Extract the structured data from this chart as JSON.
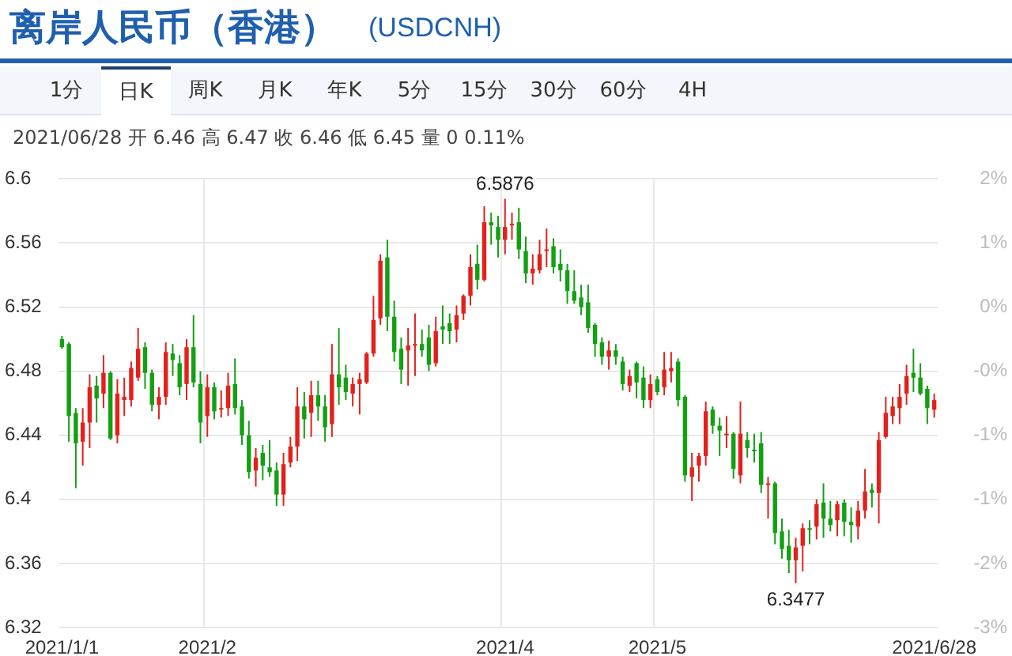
{
  "chart_data": {
    "type": "candlestick",
    "title": "离岸人民币（香港）",
    "subtitle": "(USDCNH)",
    "annotations": [
      "1分",
      "日K",
      "周K",
      "月K",
      "年K",
      "5分",
      "15分",
      "30分",
      "60分",
      "4H",
      "2021/06/28 开 6.46 高 6.47 收 6.46 低 6.45 量 0 0.11%",
      {
        "text": "6.5876",
        "y": 6.5876
      },
      {
        "text": "6.3477",
        "y": 6.3477
      }
    ],
    "categories": [
      "2021/1/1",
      null,
      null,
      null,
      null,
      null,
      null,
      null,
      null,
      null,
      null,
      null,
      null,
      null,
      null,
      null,
      null,
      null,
      null,
      null,
      null,
      "2021/2",
      null,
      null,
      null,
      null,
      null,
      null,
      null,
      null,
      null,
      null,
      null,
      null,
      null,
      null,
      null,
      null,
      null,
      null,
      null,
      null,
      null,
      null,
      null,
      null,
      null,
      null,
      null,
      null,
      null,
      null,
      null,
      null,
      null,
      null,
      null,
      null,
      null,
      null,
      null,
      null,
      null,
      null,
      "2021/4",
      null,
      null,
      null,
      null,
      null,
      null,
      null,
      null,
      null,
      null,
      null,
      null,
      null,
      null,
      null,
      null,
      null,
      null,
      null,
      null,
      null,
      "2021/5",
      null,
      null,
      null,
      null,
      null,
      null,
      null,
      null,
      null,
      null,
      null,
      null,
      null,
      null,
      null,
      null,
      null,
      null,
      null,
      null,
      null,
      null,
      null,
      null,
      null,
      null,
      null,
      null,
      null,
      null,
      null,
      null,
      null,
      null,
      null,
      null,
      null,
      null,
      null,
      "2021/6/28"
    ],
    "ohlc": [
      [
        6.5,
        6.502,
        6.494,
        6.495
      ],
      [
        6.497,
        6.498,
        6.436,
        6.452
      ],
      [
        6.454,
        6.457,
        6.407,
        6.435
      ],
      [
        6.436,
        6.457,
        6.421,
        6.448
      ],
      [
        6.448,
        6.478,
        6.432,
        6.47
      ],
      [
        6.471,
        6.477,
        6.448,
        6.463
      ],
      [
        6.466,
        6.49,
        6.457,
        6.479
      ],
      [
        6.479,
        6.48,
        6.437,
        6.438
      ],
      [
        6.44,
        6.475,
        6.435,
        6.466
      ],
      [
        6.462,
        6.476,
        6.452,
        6.464
      ],
      [
        6.462,
        6.486,
        6.458,
        6.482
      ],
      [
        6.476,
        6.507,
        6.474,
        6.494
      ],
      [
        6.495,
        6.498,
        6.469,
        6.479
      ],
      [
        6.479,
        6.481,
        6.455,
        6.459
      ],
      [
        6.459,
        6.47,
        6.45,
        6.464
      ],
      [
        6.464,
        6.498,
        6.459,
        6.492
      ],
      [
        6.491,
        6.497,
        6.477,
        6.487
      ],
      [
        6.485,
        6.49,
        6.465,
        6.47
      ],
      [
        6.472,
        6.5,
        6.462,
        6.495
      ],
      [
        6.495,
        6.515,
        6.47,
        6.473
      ],
      [
        6.472,
        6.48,
        6.435,
        6.448
      ],
      [
        6.452,
        6.478,
        6.439,
        6.47
      ],
      [
        6.47,
        6.473,
        6.45,
        6.455
      ],
      [
        6.456,
        6.468,
        6.451,
        6.456
      ],
      [
        6.457,
        6.479,
        6.452,
        6.471
      ],
      [
        6.472,
        6.488,
        6.453,
        6.457
      ],
      [
        6.458,
        6.462,
        6.434,
        6.44
      ],
      [
        6.44,
        6.449,
        6.413,
        6.417
      ],
      [
        6.418,
        6.432,
        6.408,
        6.426
      ],
      [
        6.429,
        6.434,
        6.412,
        6.421
      ],
      [
        6.42,
        6.437,
        6.414,
        6.417
      ],
      [
        6.418,
        6.423,
        6.396,
        6.403
      ],
      [
        6.403,
        6.429,
        6.396,
        6.422
      ],
      [
        6.423,
        6.439,
        6.42,
        6.433
      ],
      [
        6.433,
        6.47,
        6.424,
        6.458
      ],
      [
        6.458,
        6.467,
        6.438,
        6.45
      ],
      [
        6.454,
        6.474,
        6.439,
        6.465
      ],
      [
        6.465,
        6.474,
        6.449,
        6.458
      ],
      [
        6.458,
        6.465,
        6.436,
        6.445
      ],
      [
        6.447,
        6.497,
        6.439,
        6.478
      ],
      [
        6.478,
        6.507,
        6.459,
        6.47
      ],
      [
        6.476,
        6.484,
        6.462,
        6.467
      ],
      [
        6.466,
        6.476,
        6.458,
        6.472
      ],
      [
        6.472,
        6.479,
        6.453,
        6.475
      ],
      [
        6.473,
        6.492,
        6.472,
        6.491
      ],
      [
        6.491,
        6.527,
        6.489,
        6.512
      ],
      [
        6.513,
        6.553,
        6.509,
        6.549
      ],
      [
        6.551,
        6.562,
        6.505,
        6.514
      ],
      [
        6.514,
        6.524,
        6.486,
        6.492
      ],
      [
        6.494,
        6.501,
        6.472,
        6.481
      ],
      [
        6.493,
        6.507,
        6.471,
        6.496
      ],
      [
        6.496,
        6.516,
        6.477,
        6.497
      ],
      [
        6.497,
        6.506,
        6.489,
        6.493
      ],
      [
        6.501,
        6.509,
        6.48,
        6.484
      ],
      [
        6.485,
        6.514,
        6.483,
        6.505
      ],
      [
        6.508,
        6.521,
        6.497,
        6.506
      ],
      [
        6.51,
        6.516,
        6.497,
        6.505
      ],
      [
        6.506,
        6.521,
        6.498,
        6.515
      ],
      [
        6.516,
        6.528,
        6.512,
        6.527
      ],
      [
        6.527,
        6.553,
        6.521,
        6.545
      ],
      [
        6.547,
        6.559,
        6.531,
        6.537
      ],
      [
        6.537,
        6.583,
        6.536,
        6.573
      ],
      [
        6.573,
        6.579,
        6.559,
        6.571
      ],
      [
        6.57,
        6.577,
        6.551,
        6.562
      ],
      [
        6.562,
        6.5876,
        6.553,
        6.57
      ],
      [
        6.571,
        6.579,
        6.562,
        6.572
      ],
      [
        6.573,
        6.582,
        6.55,
        6.556
      ],
      [
        6.555,
        6.564,
        6.535,
        6.541
      ],
      [
        6.541,
        6.553,
        6.534,
        6.544
      ],
      [
        6.543,
        6.562,
        6.541,
        6.553
      ],
      [
        6.555,
        6.569,
        6.545,
        6.556
      ],
      [
        6.558,
        6.563,
        6.541,
        6.545
      ],
      [
        6.547,
        6.556,
        6.536,
        6.543
      ],
      [
        6.543,
        6.547,
        6.522,
        6.53
      ],
      [
        6.53,
        6.543,
        6.522,
        6.524
      ],
      [
        6.526,
        6.534,
        6.515,
        6.52
      ],
      [
        6.523,
        6.534,
        6.504,
        6.507
      ],
      [
        6.509,
        6.51,
        6.489,
        6.497
      ],
      [
        6.498,
        6.501,
        6.484,
        6.489
      ],
      [
        6.489,
        6.499,
        6.481,
        6.493
      ],
      [
        6.493,
        6.497,
        6.484,
        6.489
      ],
      [
        6.486,
        6.489,
        6.468,
        6.472
      ],
      [
        6.471,
        6.481,
        6.467,
        6.477
      ],
      [
        6.485,
        6.486,
        6.463,
        6.473
      ],
      [
        6.476,
        6.483,
        6.457,
        6.462
      ],
      [
        6.462,
        6.478,
        6.457,
        6.472
      ],
      [
        6.475,
        6.477,
        6.465,
        6.467
      ],
      [
        6.47,
        6.492,
        6.465,
        6.481
      ],
      [
        6.48,
        6.492,
        6.473,
        6.482
      ],
      [
        6.486,
        6.488,
        6.458,
        6.462
      ],
      [
        6.464,
        6.465,
        6.411,
        6.415
      ],
      [
        6.414,
        6.429,
        6.399,
        6.42
      ],
      [
        6.421,
        6.429,
        6.411,
        6.427
      ],
      [
        6.427,
        6.461,
        6.421,
        6.455
      ],
      [
        6.456,
        6.458,
        6.441,
        6.446
      ],
      [
        6.446,
        6.451,
        6.427,
        6.443
      ],
      [
        6.44,
        6.452,
        6.432,
        6.441
      ],
      [
        6.441,
        6.442,
        6.413,
        6.419
      ],
      [
        6.415,
        6.461,
        6.41,
        6.441
      ],
      [
        6.437,
        6.442,
        6.426,
        6.432
      ],
      [
        6.431,
        6.441,
        6.423,
        6.43
      ],
      [
        6.435,
        6.442,
        6.404,
        6.409
      ],
      [
        6.409,
        6.414,
        6.388,
        6.41
      ],
      [
        6.41,
        6.411,
        6.372,
        6.379
      ],
      [
        6.38,
        6.388,
        6.363,
        6.369
      ],
      [
        6.371,
        6.381,
        6.354,
        6.362
      ],
      [
        6.362,
        6.376,
        6.3477,
        6.37
      ],
      [
        6.371,
        6.385,
        6.355,
        6.382
      ],
      [
        6.382,
        6.387,
        6.372,
        6.381
      ],
      [
        6.383,
        6.4,
        6.375,
        6.397
      ],
      [
        6.398,
        6.41,
        6.376,
        6.388
      ],
      [
        6.388,
        6.399,
        6.38,
        6.384
      ],
      [
        6.387,
        6.399,
        6.377,
        6.397
      ],
      [
        6.398,
        6.4,
        6.377,
        6.386
      ],
      [
        6.386,
        6.395,
        6.373,
        6.384
      ],
      [
        6.383,
        6.399,
        6.375,
        6.393
      ],
      [
        6.393,
        6.419,
        6.388,
        6.405
      ],
      [
        6.406,
        6.41,
        6.395,
        6.404
      ],
      [
        6.404,
        6.442,
        6.385,
        6.437
      ],
      [
        6.439,
        6.464,
        6.438,
        6.454
      ],
      [
        6.452,
        6.464,
        6.447,
        6.458
      ],
      [
        6.457,
        6.472,
        6.447,
        6.464
      ],
      [
        6.466,
        6.484,
        6.459,
        6.477
      ],
      [
        6.479,
        6.494,
        6.467,
        6.476
      ],
      [
        6.476,
        6.485,
        6.465,
        6.466
      ],
      [
        6.469,
        6.471,
        6.447,
        6.457
      ],
      [
        6.456,
        6.466,
        6.451,
        6.462
      ]
    ],
    "colors": [
      "#13a013",
      "#13a013",
      "#13a013",
      "#e3211c",
      "#e3211c",
      "#13a013",
      "#e3211c",
      "#13a013",
      "#e3211c",
      "#e3211c",
      "#e3211c",
      "#e3211c",
      "#13a013",
      "#13a013",
      "#e3211c",
      "#e3211c",
      "#13a013",
      "#13a013",
      "#e3211c",
      "#13a013",
      "#13a013",
      "#e3211c",
      "#13a013",
      "#e3211c",
      "#e3211c",
      "#13a013",
      "#13a013",
      "#13a013",
      "#e3211c",
      "#13a013",
      "#13a013",
      "#13a013",
      "#e3211c",
      "#e3211c",
      "#e3211c",
      "#13a013",
      "#e3211c",
      "#13a013",
      "#13a013",
      "#e3211c",
      "#13a013",
      "#13a013",
      "#e3211c",
      "#e3211c",
      "#e3211c",
      "#e3211c",
      "#e3211c",
      "#13a013",
      "#13a013",
      "#13a013",
      "#e3211c",
      "#e3211c",
      "#13a013",
      "#13a013",
      "#e3211c",
      "#13a013",
      "#13a013",
      "#e3211c",
      "#e3211c",
      "#e3211c",
      "#13a013",
      "#e3211c",
      "#13a013",
      "#13a013",
      "#e3211c",
      "#e3211c",
      "#13a013",
      "#13a013",
      "#e3211c",
      "#e3211c",
      "#e3211c",
      "#13a013",
      "#13a013",
      "#13a013",
      "#13a013",
      "#13a013",
      "#13a013",
      "#13a013",
      "#13a013",
      "#e3211c",
      "#13a013",
      "#13a013",
      "#e3211c",
      "#13a013",
      "#13a013",
      "#e3211c",
      "#13a013",
      "#e3211c",
      "#e3211c",
      "#13a013",
      "#13a013",
      "#e3211c",
      "#e3211c",
      "#e3211c",
      "#13a013",
      "#13a013",
      "#e3211c",
      "#13a013",
      "#e3211c",
      "#13a013",
      "#13a013",
      "#13a013",
      "#e3211c",
      "#13a013",
      "#13a013",
      "#13a013",
      "#e3211c",
      "#e3211c",
      "#13a013",
      "#e3211c",
      "#13a013",
      "#13a013",
      "#e3211c",
      "#13a013",
      "#13a013",
      "#e3211c",
      "#e3211c",
      "#13a013",
      "#e3211c",
      "#e3211c",
      "#e3211c",
      "#e3211c",
      "#e3211c",
      "#13a013",
      "#13a013",
      "#13a013",
      "#e3211c"
    ],
    "ylim": [
      6.32,
      6.6
    ],
    "yticks": [
      6.32,
      6.36,
      6.4,
      6.44,
      6.48,
      6.52,
      6.56,
      6.6
    ],
    "y2lim": [
      -2.675,
      1.63
    ],
    "y2ticks": [
      {
        "value": -2.675,
        "label": "-3%"
      },
      {
        "value": -2.06,
        "label": "-2%"
      },
      {
        "value": -1.445,
        "label": "-1%"
      },
      {
        "value": -0.83,
        "label": "-1%"
      },
      {
        "value": -0.215,
        "label": "-0%"
      },
      {
        "value": 0.4,
        "label": "0%"
      },
      {
        "value": 1.015,
        "label": "1%"
      },
      {
        "value": 1.63,
        "label": "2%"
      }
    ],
    "grid": true
  }
}
